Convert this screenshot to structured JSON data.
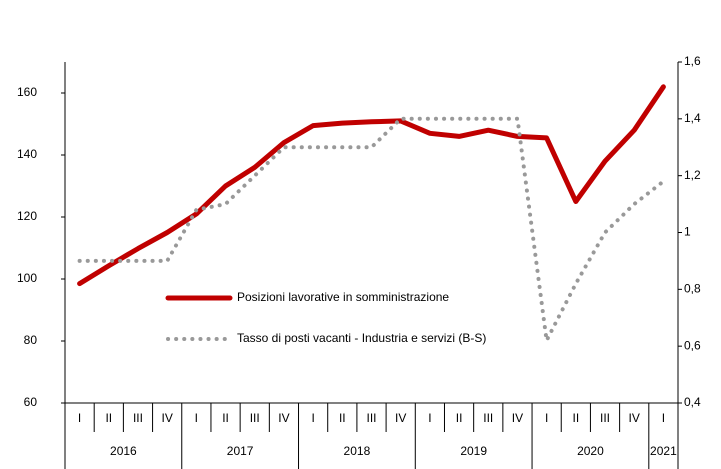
{
  "chart_data": {
    "type": "line",
    "categories": [
      "I",
      "II",
      "III",
      "IV",
      "I",
      "II",
      "III",
      "IV",
      "I",
      "II",
      "III",
      "IV",
      "I",
      "II",
      "III",
      "IV",
      "I",
      "II",
      "III",
      "IV",
      "I"
    ],
    "years": [
      "2016",
      "2017",
      "2018",
      "2019",
      "2020",
      "2021"
    ],
    "series": [
      {
        "name": "Posizioni lavorative in somministrazione",
        "color": "#c00000",
        "style": "solid",
        "axis": "y",
        "values": [
          98.5,
          104.3,
          109.8,
          115,
          121,
          130,
          136,
          144,
          149.5,
          150.3,
          150.7,
          151,
          147,
          146,
          148,
          146,
          145.5,
          125,
          138,
          148,
          162
        ]
      },
      {
        "name": "Tasso di posti vacanti - Industria e servizi (B-S)",
        "color": "#999999",
        "style": "dotted",
        "axis": "y2",
        "values": [
          0.9,
          0.9,
          0.9,
          0.9,
          1.08,
          1.1,
          1.2,
          1.3,
          1.3,
          1.3,
          1.3,
          1.4,
          1.4,
          1.4,
          1.4,
          1.4,
          0.62,
          0.82,
          1.0,
          1.1,
          1.18
        ]
      }
    ],
    "ylim": [
      60,
      170
    ],
    "yticks": [
      60,
      80,
      100,
      120,
      140,
      160
    ],
    "y2lim": [
      0.4,
      1.6
    ],
    "y2ticks": [
      {
        "value": 0.4,
        "label": "0,4"
      },
      {
        "value": 0.6,
        "label": "0,6"
      },
      {
        "value": 0.8,
        "label": "0,8"
      },
      {
        "value": 1,
        "label": "1"
      },
      {
        "value": 1.2,
        "label": "1,2"
      },
      {
        "value": 1.4,
        "label": "1,4"
      },
      {
        "value": 1.6,
        "label": "1,6"
      }
    ]
  }
}
